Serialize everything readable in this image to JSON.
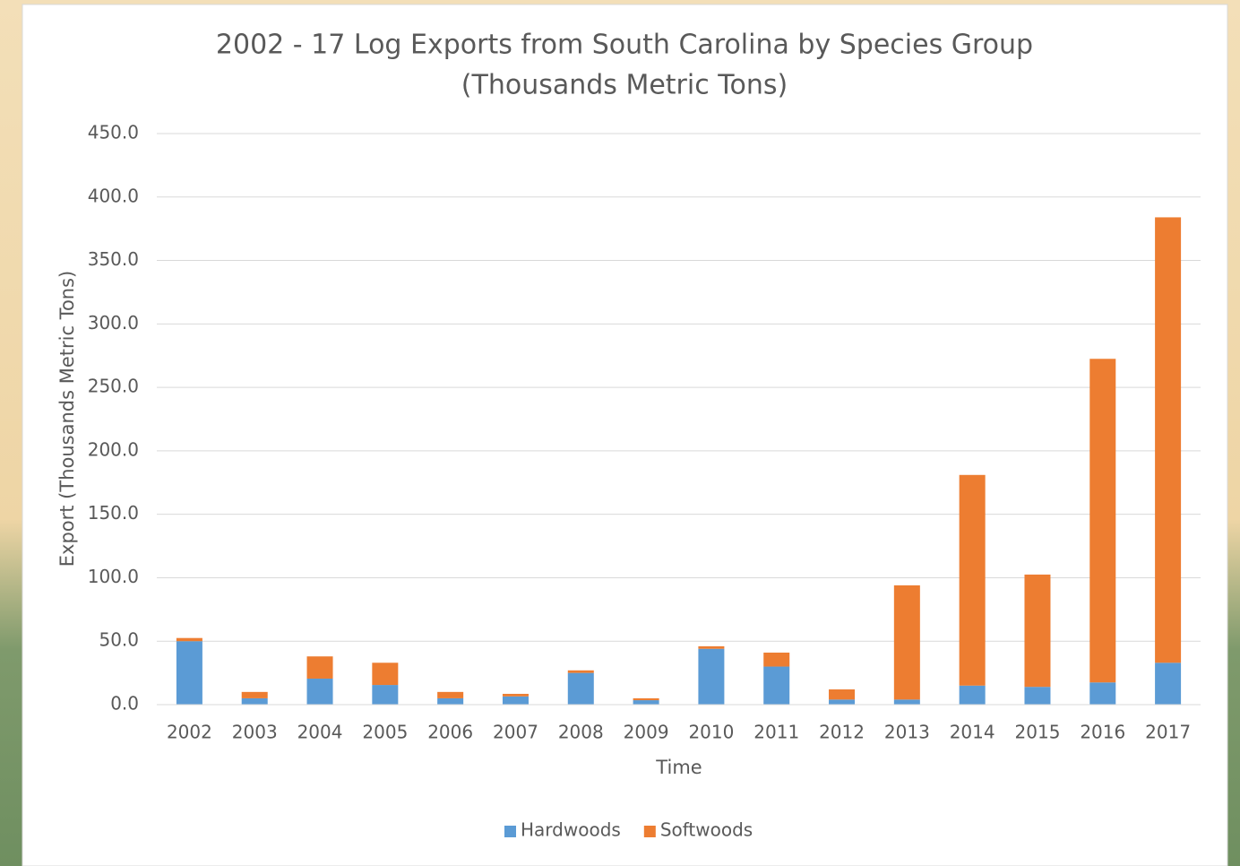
{
  "chart_data": {
    "type": "stacked_bar",
    "title": "2002 - 17 Log Exports from South Carolina by Species Group",
    "subtitle": "(Thousands Metric Tons)",
    "x_label": "Time",
    "y_label": "Export (Thousands Metric Tons)",
    "categories": [
      "2002",
      "2003",
      "2004",
      "2005",
      "2006",
      "2007",
      "2008",
      "2009",
      "2010",
      "2011",
      "2012",
      "2013",
      "2014",
      "2015",
      "2016",
      "2017"
    ],
    "series": [
      {
        "name": "Hardwoods",
        "color": "#5b9bd5",
        "values": [
          50,
          5,
          20.5,
          15.5,
          5,
          6.5,
          25,
          3.5,
          44,
          30,
          4,
          4,
          15,
          14,
          17.5,
          33
        ]
      },
      {
        "name": "Softwoods",
        "color": "#ed7d31",
        "values": [
          2.5,
          5,
          17.5,
          17.5,
          5,
          2,
          2,
          1.5,
          2,
          11,
          8,
          90,
          166,
          88.5,
          255,
          351
        ]
      }
    ],
    "ylim": [
      0,
      450
    ],
    "yticks": [
      {
        "value": 0,
        "label": "0.0"
      },
      {
        "value": 50,
        "label": "50.0"
      },
      {
        "value": 100,
        "label": "100.0"
      },
      {
        "value": 150,
        "label": "150.0"
      },
      {
        "value": 200,
        "label": "200.0"
      },
      {
        "value": 250,
        "label": "250.0"
      },
      {
        "value": 300,
        "label": "300.0"
      },
      {
        "value": 350,
        "label": "350.0"
      },
      {
        "value": 400,
        "label": "400.0"
      },
      {
        "value": 450,
        "label": "450.0"
      }
    ],
    "grid": true,
    "legend": "bottom"
  }
}
